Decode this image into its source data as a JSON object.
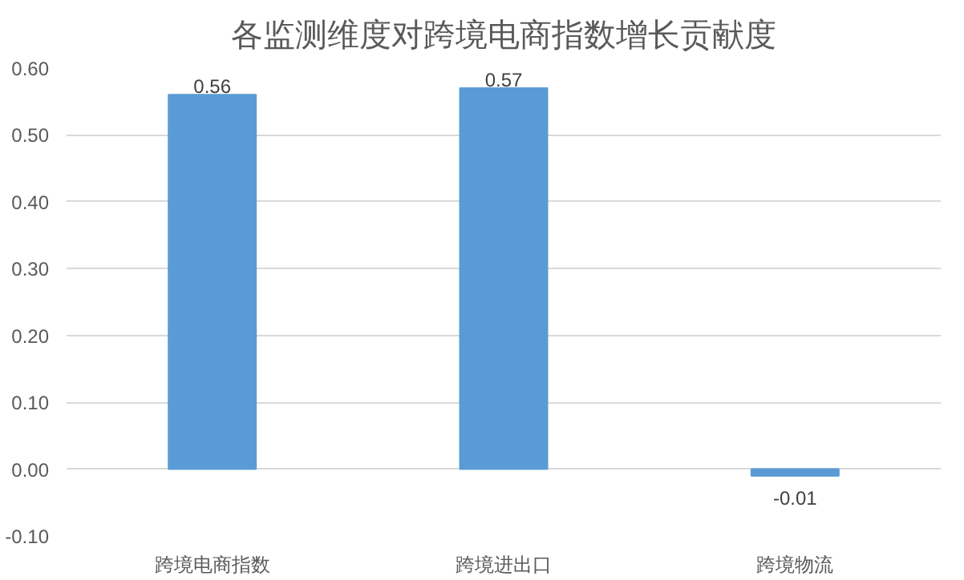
{
  "chart_data": {
    "type": "bar",
    "title": "各监测维度对跨境电商指数增长贡献度",
    "categories": [
      "跨境电商指数",
      "跨境进出口",
      "跨境物流"
    ],
    "values": [
      0.56,
      0.57,
      -0.01
    ],
    "color": "#5b9bd5",
    "ylim": [
      -0.1,
      0.6
    ],
    "yticks": [
      {
        "value": -0.1,
        "label": "-0.10"
      },
      {
        "value": 0,
        "label": "0.00"
      },
      {
        "value": 0.1,
        "label": "0.10"
      },
      {
        "value": 0.2,
        "label": "0.20"
      },
      {
        "value": 0.3,
        "label": "0.30"
      },
      {
        "value": 0.4,
        "label": "0.40"
      },
      {
        "value": 0.5,
        "label": "0.50"
      },
      {
        "value": 0.6,
        "label": "0.60"
      }
    ],
    "grid": "y",
    "data_labels": true
  }
}
